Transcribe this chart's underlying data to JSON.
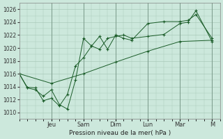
{
  "xlabel": "Pression niveau de la mer( hPa )",
  "bg_color": "#cce8dc",
  "plot_bg_color": "#cce8dc",
  "grid_color": "#aacaba",
  "line_color": "#1a5c28",
  "ylim": [
    1009,
    1027
  ],
  "yticks": [
    1010,
    1012,
    1014,
    1016,
    1018,
    1020,
    1022,
    1024,
    1026
  ],
  "xlim": [
    0,
    12.5
  ],
  "day_labels": [
    "Jeu",
    "Sam",
    "Dim",
    "Lun",
    "Mar",
    "M"
  ],
  "day_positions": [
    2.0,
    4.0,
    6.0,
    8.0,
    10.0,
    12.0
  ],
  "series1": {
    "x": [
      0,
      0.5,
      1.0,
      1.5,
      2.0,
      2.5,
      3.0,
      3.5,
      4.0,
      4.5,
      5.0,
      5.5,
      6.0,
      6.5,
      7.0,
      8.0,
      9.0,
      10.0,
      10.5,
      11.0,
      12.0
    ],
    "y": [
      1016,
      1013.8,
      1013.5,
      1012.5,
      1013.5,
      1011.2,
      1010.5,
      1015.0,
      1021.5,
      1020.3,
      1019.8,
      1021.5,
      1021.8,
      1022.0,
      1021.5,
      1021.8,
      1022.1,
      1023.8,
      1024.0,
      1025.8,
      1021.0
    ]
  },
  "series2": {
    "x": [
      0,
      0.5,
      1.0,
      1.5,
      2.0,
      2.5,
      3.0,
      3.5,
      4.0,
      4.5,
      5.0,
      5.5,
      6.0,
      6.5,
      7.0,
      8.0,
      9.0,
      10.0,
      10.5,
      11.0,
      12.0
    ],
    "y": [
      1016,
      1013.9,
      1013.8,
      1011.8,
      1012.2,
      1011.0,
      1012.8,
      1017.2,
      1018.5,
      1020.3,
      1021.8,
      1019.8,
      1022.0,
      1021.5,
      1021.2,
      1023.8,
      1024.1,
      1024.1,
      1024.3,
      1025.2,
      1021.5
    ]
  },
  "series3": {
    "x": [
      0,
      2.0,
      4.0,
      6.0,
      8.0,
      10.0,
      12.0
    ],
    "y": [
      1016,
      1014.5,
      1016.0,
      1017.8,
      1019.5,
      1021.0,
      1021.2
    ]
  }
}
